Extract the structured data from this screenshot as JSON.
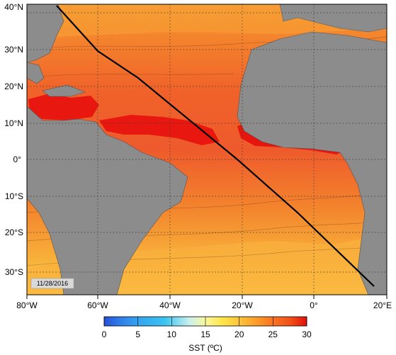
{
  "map": {
    "date_stamp": "11/28/2016",
    "lat_labels": [
      "40°N",
      "30°N",
      "20°N",
      "10°N",
      "0°",
      "10°S",
      "20°S",
      "30°S"
    ],
    "lon_labels": [
      "80°W",
      "60°W",
      "40°W",
      "20°W",
      "0°",
      "20°E"
    ],
    "track_line": "ship transect",
    "colors": {
      "land": "#8c8c8c",
      "track": "#000000",
      "grid": "#333333"
    }
  },
  "colorbar": {
    "tick_labels": [
      "0",
      "5",
      "10",
      "15",
      "20",
      "25",
      "30"
    ],
    "title": "SST (ºC)",
    "stops": [
      "#2a4fd6",
      "#2f7fe8",
      "#35a4ef",
      "#3ac3f0",
      "#7fdcf0",
      "#c9f0ee",
      "#fbf7a0",
      "#fde74a",
      "#fdc43a",
      "#fb9d2a",
      "#f87620",
      "#f25017",
      "#ea2b12",
      "#e0110d"
    ]
  }
}
